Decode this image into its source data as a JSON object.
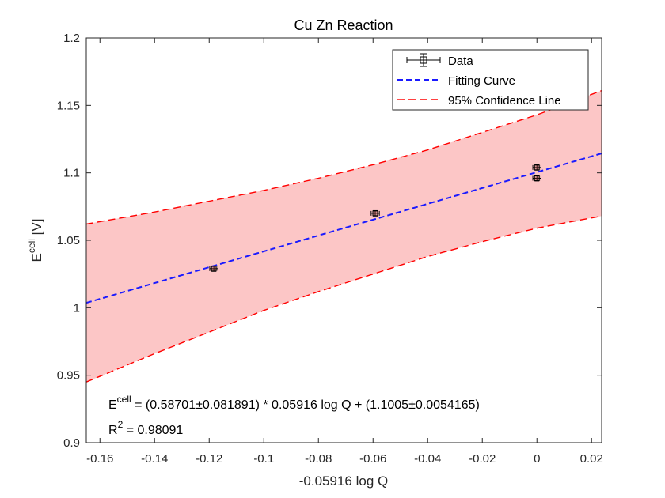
{
  "chart_data": {
    "type": "line",
    "title": "Cu Zn Reaction",
    "xlabel": "-0.05916 log Q",
    "ylabel": {
      "base": "E",
      "sup": "cell",
      "unit": "[V]"
    },
    "xlim": [
      -0.165,
      0.0237
    ],
    "ylim": [
      0.9,
      1.2
    ],
    "xticks": [
      -0.16,
      -0.14,
      -0.12,
      -0.1,
      -0.08,
      -0.06,
      -0.04,
      -0.02,
      0,
      0.02
    ],
    "xtick_labels": [
      "-0.16",
      "-0.14",
      "-0.12",
      "-0.1",
      "-0.08",
      "-0.06",
      "-0.04",
      "-0.02",
      "0",
      "0.02"
    ],
    "yticks": [
      0.9,
      0.95,
      1.0,
      1.05,
      1.1,
      1.15,
      1.2
    ],
    "ytick_labels": [
      "0.9",
      "0.95",
      "1",
      "1.05",
      "1.1",
      "1.15",
      "1.2"
    ],
    "grid": false,
    "legend_position": "top-right",
    "legend": [
      "Data",
      "Fitting Curve",
      "95% Confidence Line"
    ],
    "data_points": [
      {
        "x": -0.1183,
        "y": 1.029,
        "xerr": 0.0015,
        "yerr": 0.002
      },
      {
        "x": -0.0592,
        "y": 1.07,
        "xerr": 0.0015,
        "yerr": 0.002
      },
      {
        "x": 0.0,
        "y": 1.104,
        "xerr": 0.0015,
        "yerr": 0.002
      },
      {
        "x": 0.0,
        "y": 1.096,
        "xerr": 0.0015,
        "yerr": 0.002
      }
    ],
    "fit": {
      "slope": 0.58701,
      "intercept": 1.1005
    },
    "confidence_upper": {
      "x": [
        -0.165,
        -0.14,
        -0.12,
        -0.1,
        -0.08,
        -0.06,
        -0.04,
        -0.02,
        0.0,
        0.0237
      ],
      "y": [
        1.062,
        1.071,
        1.079,
        1.087,
        1.096,
        1.106,
        1.117,
        1.13,
        1.143,
        1.161
      ]
    },
    "confidence_lower": {
      "x": [
        -0.165,
        -0.14,
        -0.12,
        -0.1,
        -0.08,
        -0.06,
        -0.04,
        -0.02,
        0.0,
        0.0237
      ],
      "y": [
        0.945,
        0.966,
        0.982,
        0.998,
        1.012,
        1.025,
        1.038,
        1.049,
        1.059,
        1.068
      ]
    },
    "annotations": {
      "equation": {
        "base": "E",
        "sup": "cell",
        "rest": " = (0.58701±0.081891) * 0.05916 log Q + (1.1005±0.0054165)"
      },
      "r2": {
        "base": "R",
        "sup": "2",
        "rest": " = 0.98091"
      }
    },
    "colors": {
      "data": "#000000",
      "marker_fill": "#8a2a2a",
      "fit": "#1a1aff",
      "confidence": "#ff0000",
      "band": "#fcc6c6"
    }
  }
}
